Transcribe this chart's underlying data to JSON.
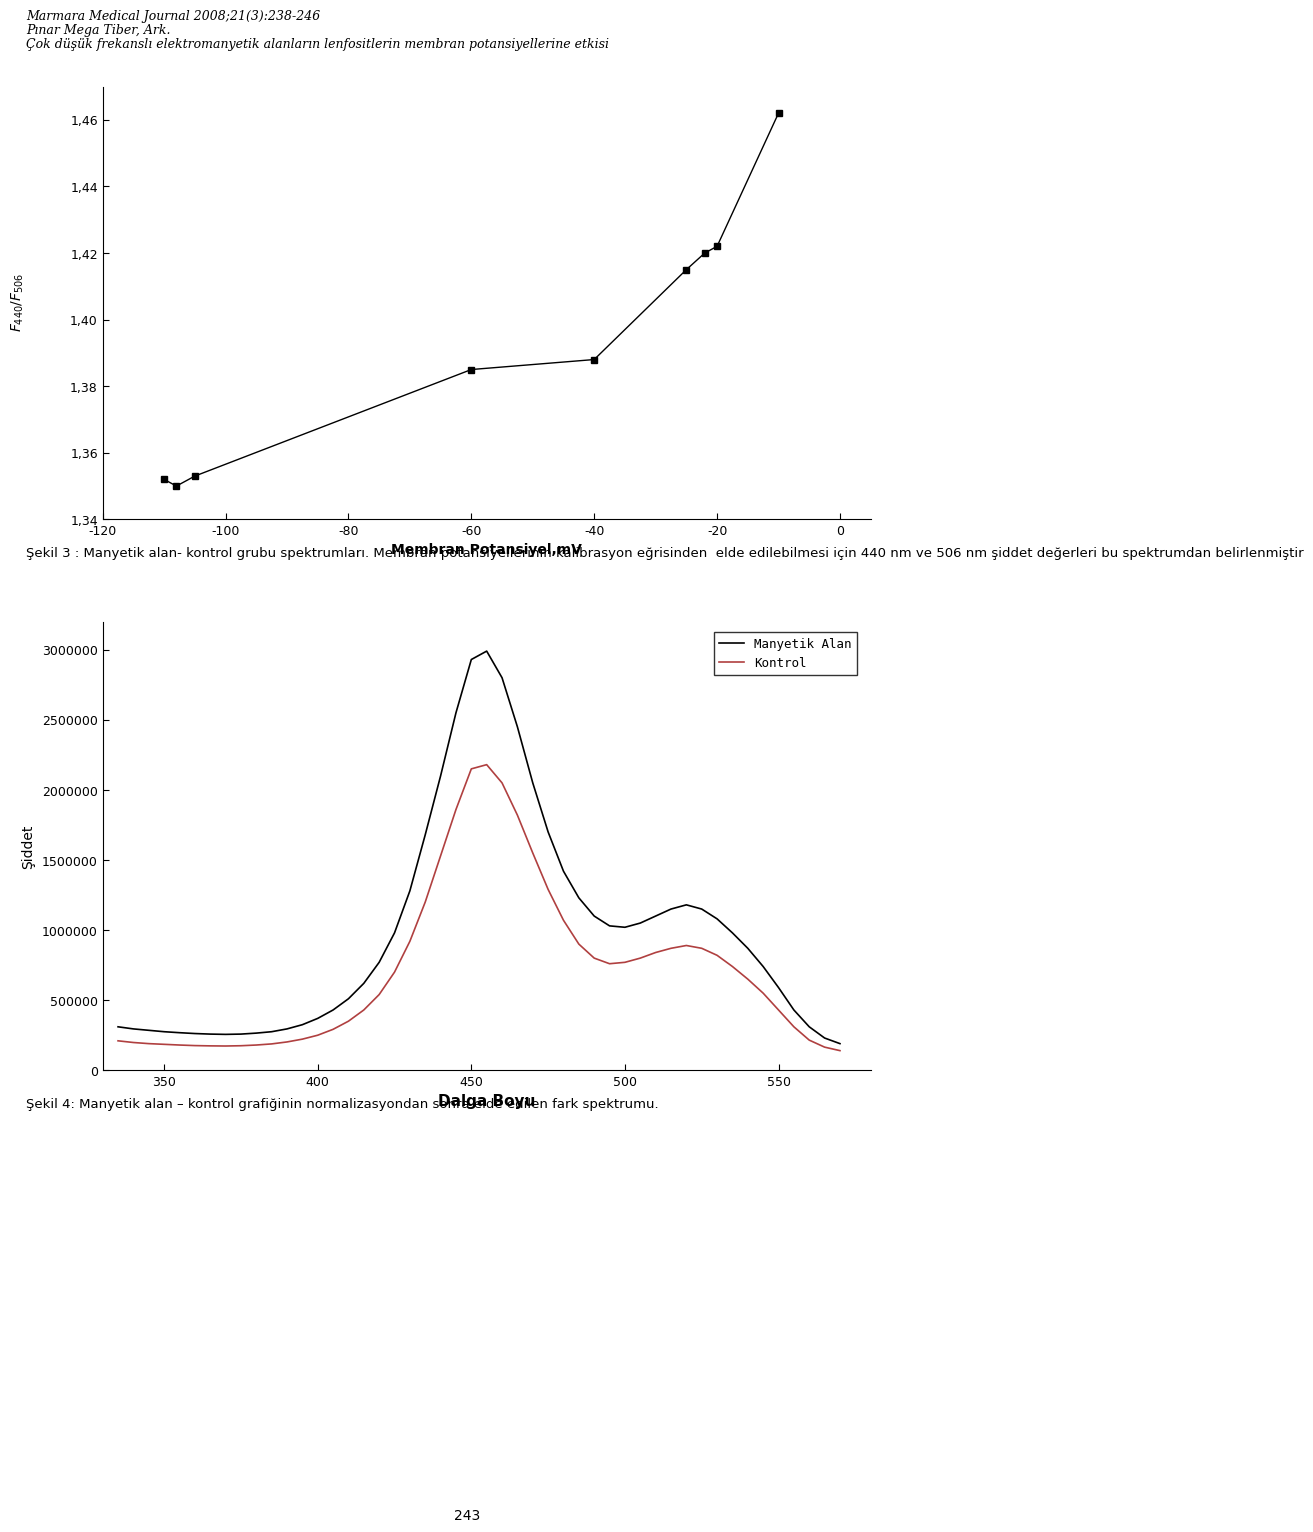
{
  "header_line1": "Marmara Medical Journal 2008;21(3):238-246",
  "header_line2": "Pınar Mega Tiber, Ark.",
  "header_line3": "Çok düşük frekanslı elektromanyetik alanların lenfositlerin membran potansiyellerine etkisi",
  "chart1": {
    "x": [
      -110,
      -108,
      -105,
      -60,
      -40,
      -25,
      -22,
      -20,
      -10
    ],
    "y": [
      1.352,
      1.35,
      1.353,
      1.385,
      1.388,
      1.415,
      1.42,
      1.422,
      1.462
    ],
    "xlabel": "Membran Potansiyel,mV",
    "xlim": [
      -120,
      5
    ],
    "ylim": [
      1.34,
      1.47
    ],
    "xticks": [
      -120,
      -100,
      -80,
      -60,
      -40,
      -20,
      0
    ],
    "yticks": [
      1.34,
      1.36,
      1.38,
      1.4,
      1.42,
      1.44,
      1.46
    ],
    "marker": "s",
    "color": "black"
  },
  "caption1_bold": "Şekil 3",
  "caption1_rest": " : Manyetik alan- kontrol grubu spektrumları. Membran potansiyellerinin kalibrasyon eğrisinden  elde edilebilmesi için 440 nm ve 506 nm şiddet değerleri bu spektrumdan belirlenmiştir",
  "chart2": {
    "xlabel": "Dalga Boyu",
    "ylabel": "Şiddet",
    "xlim": [
      330,
      580
    ],
    "ylim": [
      0,
      3200000
    ],
    "xticks": [
      350,
      400,
      450,
      500,
      550
    ],
    "yticks": [
      0,
      500000,
      1000000,
      1500000,
      2000000,
      2500000,
      3000000
    ],
    "ytick_labels": [
      "0",
      "500000",
      "1000000",
      "1500000",
      "2000000",
      "2500000",
      "3000000"
    ],
    "legend": [
      "Manyetik Alan",
      "Kontrol"
    ],
    "line1_color": "black",
    "line2_color": "#b04040",
    "line1_x": [
      335,
      340,
      345,
      350,
      355,
      360,
      365,
      370,
      375,
      380,
      385,
      390,
      395,
      400,
      405,
      410,
      415,
      420,
      425,
      430,
      435,
      440,
      445,
      450,
      455,
      460,
      465,
      470,
      475,
      480,
      485,
      490,
      495,
      500,
      505,
      510,
      515,
      520,
      525,
      530,
      535,
      540,
      545,
      550,
      555,
      560,
      565,
      570
    ],
    "line1_y": [
      310000,
      295000,
      285000,
      275000,
      268000,
      262000,
      258000,
      256000,
      258000,
      265000,
      275000,
      295000,
      325000,
      370000,
      430000,
      510000,
      620000,
      770000,
      980000,
      1280000,
      1680000,
      2100000,
      2550000,
      2930000,
      2990000,
      2800000,
      2450000,
      2050000,
      1700000,
      1420000,
      1230000,
      1100000,
      1030000,
      1020000,
      1050000,
      1100000,
      1150000,
      1180000,
      1150000,
      1080000,
      980000,
      870000,
      740000,
      590000,
      430000,
      310000,
      230000,
      190000
    ],
    "line2_x": [
      335,
      340,
      345,
      350,
      355,
      360,
      365,
      370,
      375,
      380,
      385,
      390,
      395,
      400,
      405,
      410,
      415,
      420,
      425,
      430,
      435,
      440,
      445,
      450,
      455,
      460,
      465,
      470,
      475,
      480,
      485,
      490,
      495,
      500,
      505,
      510,
      515,
      520,
      525,
      530,
      535,
      540,
      545,
      550,
      555,
      560,
      565,
      570
    ],
    "line2_y": [
      210000,
      198000,
      190000,
      185000,
      180000,
      176000,
      174000,
      173000,
      175000,
      180000,
      188000,
      202000,
      222000,
      250000,
      292000,
      350000,
      430000,
      540000,
      700000,
      920000,
      1200000,
      1530000,
      1860000,
      2150000,
      2180000,
      2050000,
      1820000,
      1550000,
      1290000,
      1070000,
      900000,
      800000,
      760000,
      770000,
      800000,
      840000,
      870000,
      890000,
      870000,
      820000,
      740000,
      650000,
      550000,
      430000,
      310000,
      215000,
      165000,
      140000
    ]
  },
  "caption2_bold": "Şekil 4:",
  "caption2_rest": " Manyetik alan – kontrol grafiğinin normalizasyondan sonra elde edilen fark spektrumu.",
  "page_number": "243"
}
